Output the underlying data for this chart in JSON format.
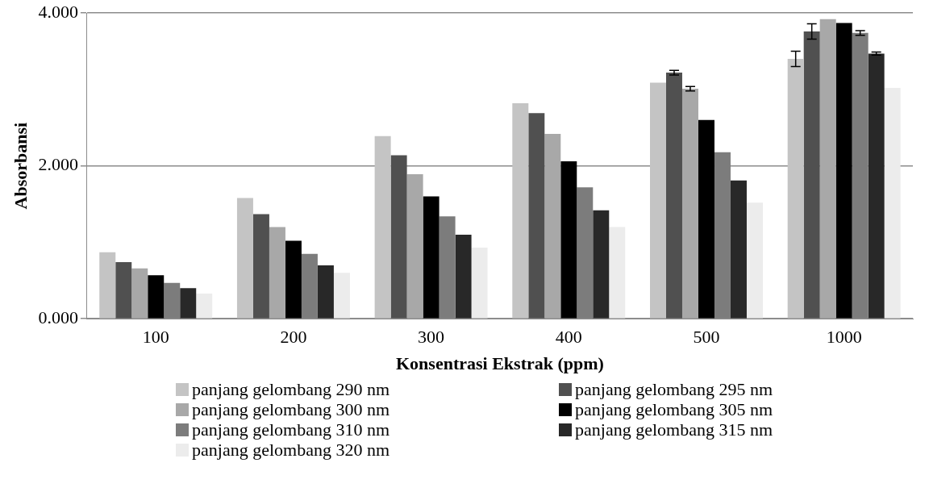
{
  "chart_data": {
    "type": "bar",
    "xlabel": "Konsentrasi Ekstrak (ppm)",
    "ylabel": "Absorbansi",
    "categories": [
      "100",
      "200",
      "300",
      "400",
      "500",
      "1000"
    ],
    "ylim": [
      0,
      4
    ],
    "yticks": [
      {
        "value": 0,
        "label": "0.000"
      },
      {
        "value": 2,
        "label": "2.000"
      },
      {
        "value": 4,
        "label": "4.000"
      }
    ],
    "grid": "y",
    "legend": "bottom",
    "series": [
      {
        "name": "panjang gelombang 290 nm",
        "color": "#c4c4c4",
        "values": [
          0.87,
          1.58,
          2.39,
          2.82,
          3.09,
          3.4
        ],
        "errors": [
          null,
          null,
          null,
          null,
          null,
          0.1
        ]
      },
      {
        "name": "panjang gelombang 295 nm",
        "color": "#505050",
        "values": [
          0.74,
          1.37,
          2.14,
          2.69,
          3.22,
          3.76
        ],
        "errors": [
          null,
          null,
          null,
          null,
          0.03,
          0.1
        ]
      },
      {
        "name": "panjang gelombang 300 nm",
        "color": "#a8a8a8",
        "values": [
          0.66,
          1.2,
          1.89,
          2.42,
          3.01,
          3.92
        ],
        "errors": [
          null,
          null,
          null,
          null,
          0.03,
          null
        ]
      },
      {
        "name": "panjang gelombang 305 nm",
        "color": "#000000",
        "values": [
          0.57,
          1.02,
          1.6,
          2.06,
          2.6,
          3.87
        ]
      },
      {
        "name": "panjang gelombang 310 nm",
        "color": "#7c7c7c",
        "values": [
          0.47,
          0.85,
          1.34,
          1.72,
          2.18,
          3.74
        ],
        "errors": [
          null,
          null,
          null,
          null,
          null,
          0.03
        ]
      },
      {
        "name": "panjang gelombang 315 nm",
        "color": "#282828",
        "values": [
          0.4,
          0.7,
          1.1,
          1.42,
          1.81,
          3.47
        ],
        "errors": [
          null,
          null,
          null,
          null,
          null,
          0.02
        ]
      },
      {
        "name": "panjang gelombang 320 nm",
        "color": "#ececec",
        "values": [
          0.33,
          0.6,
          0.93,
          1.2,
          1.52,
          3.02
        ]
      }
    ]
  }
}
